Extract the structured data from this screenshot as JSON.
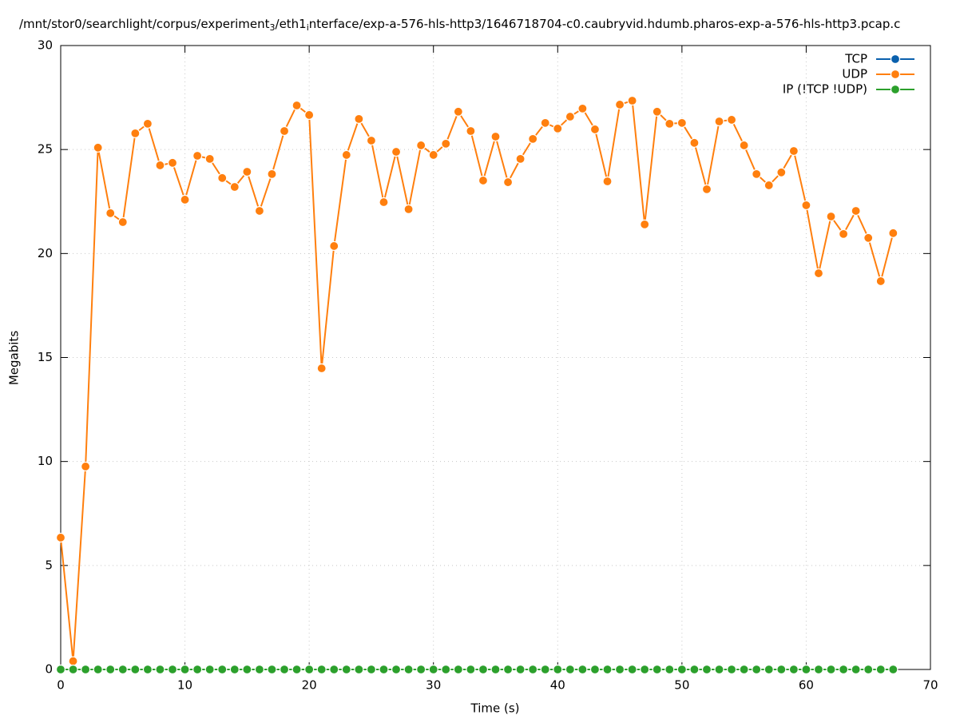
{
  "chart_data": {
    "type": "line",
    "title": [
      "/mnt/stor0/searchlight/corpus/experiment",
      "3",
      "/eth1",
      "i",
      "nterface/exp-a-576-hls-http3/1646718704-c0.caubryvid.hdumb.pharos-exp-a-576-hls-http3.pcap.c"
    ],
    "xlabel": "Time (s)",
    "ylabel": "Megabits",
    "x": [
      0,
      1,
      2,
      3,
      4,
      5,
      6,
      7,
      8,
      9,
      10,
      11,
      12,
      13,
      14,
      15,
      16,
      17,
      18,
      19,
      20,
      21,
      22,
      23,
      24,
      25,
      26,
      27,
      28,
      29,
      30,
      31,
      32,
      33,
      34,
      35,
      36,
      37,
      38,
      39,
      40,
      41,
      42,
      43,
      44,
      45,
      46,
      47,
      48,
      49,
      50,
      51,
      52,
      53,
      54,
      55,
      56,
      57,
      58,
      59,
      60,
      61,
      62,
      63,
      64,
      65,
      66,
      67
    ],
    "series": [
      {
        "name": "TCP",
        "color": "#0a60ad",
        "values": [
          0,
          0,
          0,
          0,
          0,
          0,
          0,
          0,
          0,
          0,
          0,
          0,
          0,
          0,
          0,
          0,
          0,
          0,
          0,
          0,
          0,
          0,
          0,
          0,
          0,
          0,
          0,
          0,
          0,
          0,
          0,
          0,
          0,
          0,
          0,
          0,
          0,
          0,
          0,
          0,
          0,
          0,
          0,
          0,
          0,
          0,
          0,
          0,
          0,
          0,
          0,
          0,
          0,
          0,
          0,
          0,
          0,
          0,
          0,
          0,
          0,
          0,
          0,
          0,
          0,
          0,
          0,
          0
        ]
      },
      {
        "name": "UDP",
        "color": "#ff7f0e",
        "values": [
          6.34,
          0.4,
          9.76,
          25.09,
          21.94,
          21.51,
          25.78,
          26.24,
          24.24,
          24.36,
          22.59,
          24.7,
          24.55,
          23.63,
          23.2,
          23.93,
          22.05,
          23.82,
          25.89,
          27.12,
          26.66,
          14.48,
          20.36,
          24.74,
          26.47,
          25.43,
          22.47,
          24.89,
          22.13,
          25.2,
          24.74,
          25.28,
          26.82,
          25.89,
          23.51,
          25.62,
          23.43,
          24.55,
          25.51,
          26.28,
          26.01,
          26.58,
          26.97,
          25.97,
          23.47,
          27.16,
          27.35,
          21.4,
          26.82,
          26.24,
          26.28,
          25.32,
          23.09,
          26.35,
          26.43,
          25.2,
          23.82,
          23.28,
          23.9,
          24.93,
          22.32,
          19.05,
          21.78,
          20.94,
          22.05,
          20.75,
          18.67,
          20.98
        ]
      },
      {
        "name": "IP (!TCP  !UDP)",
        "color": "#2ca02c",
        "values": [
          0,
          0,
          0,
          0,
          0,
          0,
          0,
          0,
          0,
          0,
          0,
          0,
          0,
          0,
          0,
          0,
          0,
          0,
          0,
          0,
          0,
          0,
          0,
          0,
          0,
          0,
          0,
          0,
          0,
          0,
          0,
          0,
          0,
          0,
          0,
          0,
          0,
          0,
          0,
          0,
          0,
          0,
          0,
          0,
          0,
          0,
          0,
          0,
          0,
          0,
          0,
          0,
          0,
          0,
          0,
          0,
          0,
          0,
          0,
          0,
          0,
          0,
          0,
          0,
          0,
          0,
          0,
          0
        ]
      }
    ],
    "xlim": [
      0,
      70
    ],
    "xticks": [
      0,
      10,
      20,
      30,
      40,
      50,
      60,
      70
    ],
    "ylim": [
      0,
      30
    ],
    "yticks": [
      0,
      5,
      10,
      15,
      20,
      25,
      30
    ],
    "grid": true,
    "legend": "top-right"
  }
}
